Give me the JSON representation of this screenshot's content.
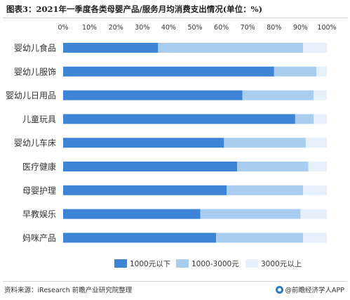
{
  "title": "图表3：2021年一季度各类母婴产品/服务月均消费支出情况(单位：%)",
  "source": "资料来源：iResearch 前瞻产业研究院整理",
  "brand": "@前瞻经济学人APP",
  "colors": {
    "series1": "#3d84d6",
    "series2": "#a9cdef",
    "series3": "#e6f0fa",
    "text": "#333333",
    "grid": "#d9d9d9"
  },
  "chart_data": {
    "type": "bar",
    "orientation": "horizontal",
    "stacked": true,
    "title": "图表3：2021年一季度各类母婴产品/服务月均消费支出情况(单位：%)",
    "xlim": [
      0,
      100
    ],
    "x_ticks": [
      "0%",
      "10%",
      "20%",
      "30%",
      "40%",
      "50%",
      "60%",
      "70%",
      "80%",
      "90%",
      "100%"
    ],
    "x_axis_position": "top",
    "legend_position": "bottom",
    "categories": [
      "婴幼儿食品",
      "婴幼儿服饰",
      "婴幼儿日用品",
      "儿童玩具",
      "婴幼儿车床",
      "医疗健康",
      "母婴护理",
      "早教娱乐",
      "妈咪产品"
    ],
    "series": [
      {
        "name": "1000元以下",
        "values": [
          36,
          80,
          68,
          88,
          61,
          66,
          62,
          52,
          58
        ]
      },
      {
        "name": "1000-3000元",
        "values": [
          55,
          16,
          27,
          7,
          31,
          27,
          29,
          38,
          33
        ]
      },
      {
        "name": "3000元以上",
        "values": [
          9,
          4,
          5,
          5,
          8,
          7,
          9,
          10,
          9
        ]
      }
    ]
  }
}
